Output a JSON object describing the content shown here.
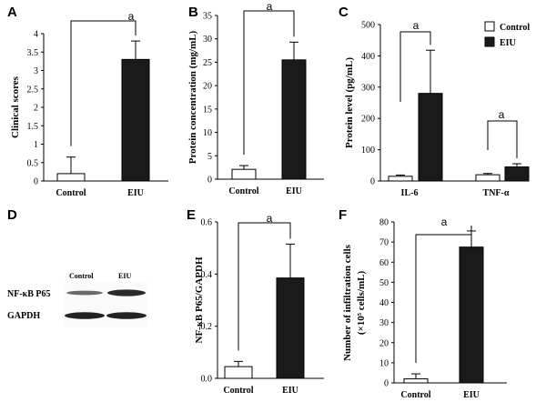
{
  "colors": {
    "control_fill": "#ffffff",
    "eiu_fill": "#1a1a1a",
    "stroke": "#000000"
  },
  "chart_data": [
    {
      "panel": "A",
      "type": "bar",
      "categories": [
        "Control",
        "EIU"
      ],
      "values": [
        0.2,
        3.3
      ],
      "errors": [
        0.45,
        0.5
      ],
      "fills": [
        "#ffffff",
        "#1a1a1a"
      ],
      "ylabel": "Clinical scores",
      "ylim": [
        0,
        4
      ],
      "yticks": [
        "0",
        "0.5",
        "1",
        "1.5",
        "2",
        "2.5",
        "3",
        "3.5",
        "4"
      ],
      "significance": "a"
    },
    {
      "panel": "B",
      "type": "bar",
      "categories": [
        "Control",
        "EIU"
      ],
      "values": [
        2.1,
        25.5
      ],
      "errors": [
        0.8,
        3.8
      ],
      "fills": [
        "#ffffff",
        "#1a1a1a"
      ],
      "ylabel": "Protein  concentration (mg/mL)",
      "ylim": [
        0,
        35
      ],
      "yticks": [
        "0",
        "5",
        "10",
        "15",
        "20",
        "25",
        "30",
        "35"
      ],
      "significance": "a"
    },
    {
      "panel": "C",
      "type": "bar",
      "categories": [
        "IL-6",
        "TNF-α"
      ],
      "series": [
        {
          "name": "Control",
          "values": [
            15,
            20
          ],
          "errors": [
            4,
            4
          ],
          "fill": "#ffffff"
        },
        {
          "name": "EIU",
          "values": [
            280,
            45
          ],
          "errors": [
            138,
            10
          ],
          "fill": "#1a1a1a"
        }
      ],
      "ylabel": "Protein level (pg/mL)",
      "ylim": [
        0,
        500
      ],
      "yticks": [
        "0",
        "100",
        "200",
        "300",
        "400",
        "500"
      ],
      "legend": [
        "Control",
        "EIU"
      ],
      "legend_position": "top-right",
      "significance": [
        "a",
        "a"
      ]
    },
    {
      "panel": "E",
      "type": "bar",
      "categories": [
        "Control",
        "EIU"
      ],
      "values": [
        0.045,
        0.385
      ],
      "errors": [
        0.02,
        0.13
      ],
      "fills": [
        "#ffffff",
        "#1a1a1a"
      ],
      "ylabel": "NF-κB P65/GAPDH",
      "ylim": [
        0,
        0.6
      ],
      "yticks": [
        "0.0",
        "0.2",
        "0.4",
        "0.6"
      ],
      "significance": "a"
    },
    {
      "panel": "F",
      "type": "bar",
      "categories": [
        "Control",
        "EIU"
      ],
      "values": [
        2,
        67.5
      ],
      "errors": [
        2.5,
        8
      ],
      "fills": [
        "#ffffff",
        "#1a1a1a"
      ],
      "ylabel": "Number of infiltration cells",
      "ylabel2": "(×10⁵ cells/mL)",
      "ylim": [
        0,
        80
      ],
      "yticks": [
        "0",
        "10",
        "20",
        "30",
        "40",
        "50",
        "60",
        "70",
        "80"
      ],
      "significance": "a"
    }
  ],
  "blot": {
    "panel": "D",
    "columns": [
      "Control",
      "EIU"
    ],
    "rows": [
      "NF-κB P65",
      "GAPDH"
    ]
  }
}
